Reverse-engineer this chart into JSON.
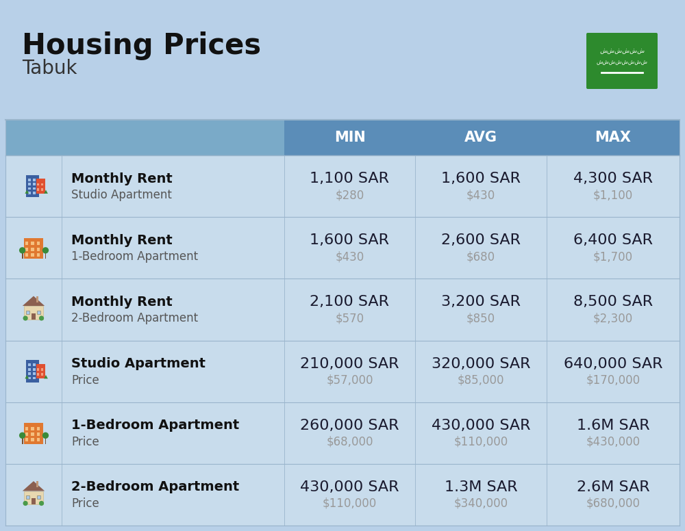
{
  "title": "Housing Prices",
  "subtitle": "Tabuk",
  "bg_color": "#b8d0e8",
  "header_color": "#5b8db8",
  "header_light_color": "#7aaac8",
  "header_text_color": "#ffffff",
  "row_label_bold_color": "#111111",
  "row_label_sub_color": "#555555",
  "sar_color": "#1a1a2e",
  "usd_color": "#999999",
  "divider_color": "#9ab5cc",
  "row_bg": "#c8dcec",
  "columns": [
    "MIN",
    "AVG",
    "MAX"
  ],
  "rows": [
    {
      "label_bold": "Monthly Rent",
      "label_sub": "Studio Apartment",
      "icon_type": "blue_red",
      "min_sar": "1,100 SAR",
      "min_usd": "$280",
      "avg_sar": "1,600 SAR",
      "avg_usd": "$430",
      "max_sar": "4,300 SAR",
      "max_usd": "$1,100"
    },
    {
      "label_bold": "Monthly Rent",
      "label_sub": "1-Bedroom Apartment",
      "icon_type": "orange_green",
      "min_sar": "1,600 SAR",
      "min_usd": "$430",
      "avg_sar": "2,600 SAR",
      "avg_usd": "$680",
      "max_sar": "6,400 SAR",
      "max_usd": "$1,700"
    },
    {
      "label_bold": "Monthly Rent",
      "label_sub": "2-Bedroom Apartment",
      "icon_type": "house_beige",
      "min_sar": "2,100 SAR",
      "min_usd": "$570",
      "avg_sar": "3,200 SAR",
      "avg_usd": "$850",
      "max_sar": "8,500 SAR",
      "max_usd": "$2,300"
    },
    {
      "label_bold": "Studio Apartment",
      "label_sub": "Price",
      "icon_type": "blue_red",
      "min_sar": "210,000 SAR",
      "min_usd": "$57,000",
      "avg_sar": "320,000 SAR",
      "avg_usd": "$85,000",
      "max_sar": "640,000 SAR",
      "max_usd": "$170,000"
    },
    {
      "label_bold": "1-Bedroom Apartment",
      "label_sub": "Price",
      "icon_type": "orange_green",
      "min_sar": "260,000 SAR",
      "min_usd": "$68,000",
      "avg_sar": "430,000 SAR",
      "avg_usd": "$110,000",
      "max_sar": "1.6M SAR",
      "max_usd": "$430,000"
    },
    {
      "label_bold": "2-Bedroom Apartment",
      "label_sub": "Price",
      "icon_type": "house_beige",
      "min_sar": "430,000 SAR",
      "min_usd": "$110,000",
      "avg_sar": "1.3M SAR",
      "avg_usd": "$340,000",
      "max_sar": "2.6M SAR",
      "max_usd": "$680,000"
    }
  ],
  "flag_green": "#2d8a2d",
  "title_fontsize": 30,
  "subtitle_fontsize": 20,
  "header_fontsize": 15,
  "cell_sar_fontsize": 16,
  "cell_usd_fontsize": 12,
  "label_bold_fontsize": 14,
  "label_sub_fontsize": 12
}
